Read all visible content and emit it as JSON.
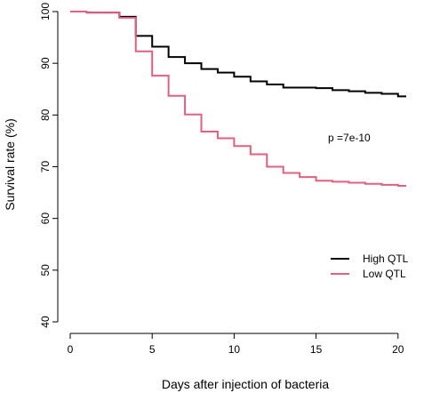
{
  "chart_data": {
    "type": "line",
    "step": true,
    "title": "",
    "xlabel": "Days after injection of bacteria",
    "ylabel": "Survival rate (%)",
    "xlim": [
      0,
      20.5
    ],
    "ylim": [
      40,
      100
    ],
    "xticks": [
      0,
      5,
      10,
      15,
      20
    ],
    "yticks": [
      40,
      50,
      60,
      70,
      80,
      90,
      100
    ],
    "grid": false,
    "legend_position": "bottom-right",
    "annotation": "p =7e-10",
    "series": [
      {
        "name": "High QTL",
        "color": "#000000",
        "x": [
          0,
          1,
          3,
          4,
          5,
          6,
          7,
          8,
          9,
          10,
          11,
          12,
          13,
          15,
          16,
          17,
          18,
          19,
          20,
          20.5
        ],
        "y": [
          100,
          99.8,
          99.0,
          95.3,
          93.2,
          91.2,
          90.0,
          88.9,
          88.2,
          87.4,
          86.5,
          85.9,
          85.3,
          85.2,
          84.8,
          84.6,
          84.3,
          84.1,
          83.6,
          83.6
        ]
      },
      {
        "name": "Low QTL",
        "color": "#E0607E",
        "x": [
          0,
          1,
          3,
          4,
          5,
          6,
          7,
          8,
          9,
          10,
          11,
          12,
          13,
          14,
          15,
          16,
          17,
          18,
          19,
          20,
          20.5
        ],
        "y": [
          100,
          99.8,
          98.8,
          92.3,
          87.6,
          83.7,
          80.1,
          76.8,
          75.5,
          74.0,
          72.4,
          70.0,
          68.8,
          68.0,
          67.3,
          67.1,
          66.9,
          66.7,
          66.5,
          66.3,
          66.3
        ]
      }
    ]
  }
}
